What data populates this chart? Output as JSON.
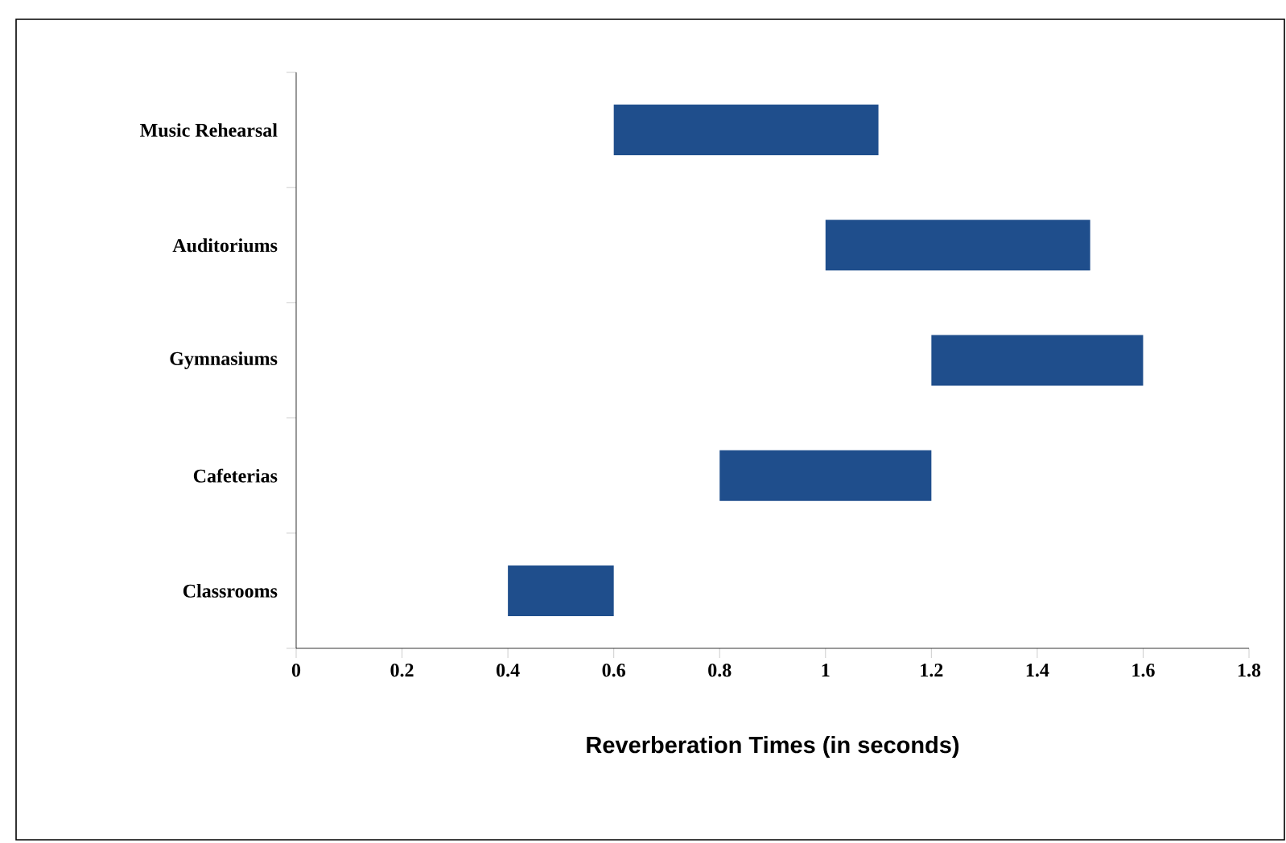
{
  "chart_data": {
    "type": "bar",
    "orientation": "horizontal",
    "xlabel": "Reverberation Times (in seconds)",
    "categories": [
      "Music Rehearsal",
      "Auditoriums",
      "Gymnasiums",
      "Cafeterias",
      "Classrooms"
    ],
    "base": [
      0.6,
      1.0,
      1.2,
      0.8,
      0.4
    ],
    "values": [
      0.5,
      0.5,
      0.4,
      0.4,
      0.2
    ],
    "color": "#1f4e8c",
    "xlim": [
      0,
      1.8
    ],
    "xticks": [
      0,
      0.2,
      0.4,
      0.6,
      0.8,
      1,
      1.2,
      1.4,
      1.6,
      1.8
    ],
    "grid": false
  }
}
